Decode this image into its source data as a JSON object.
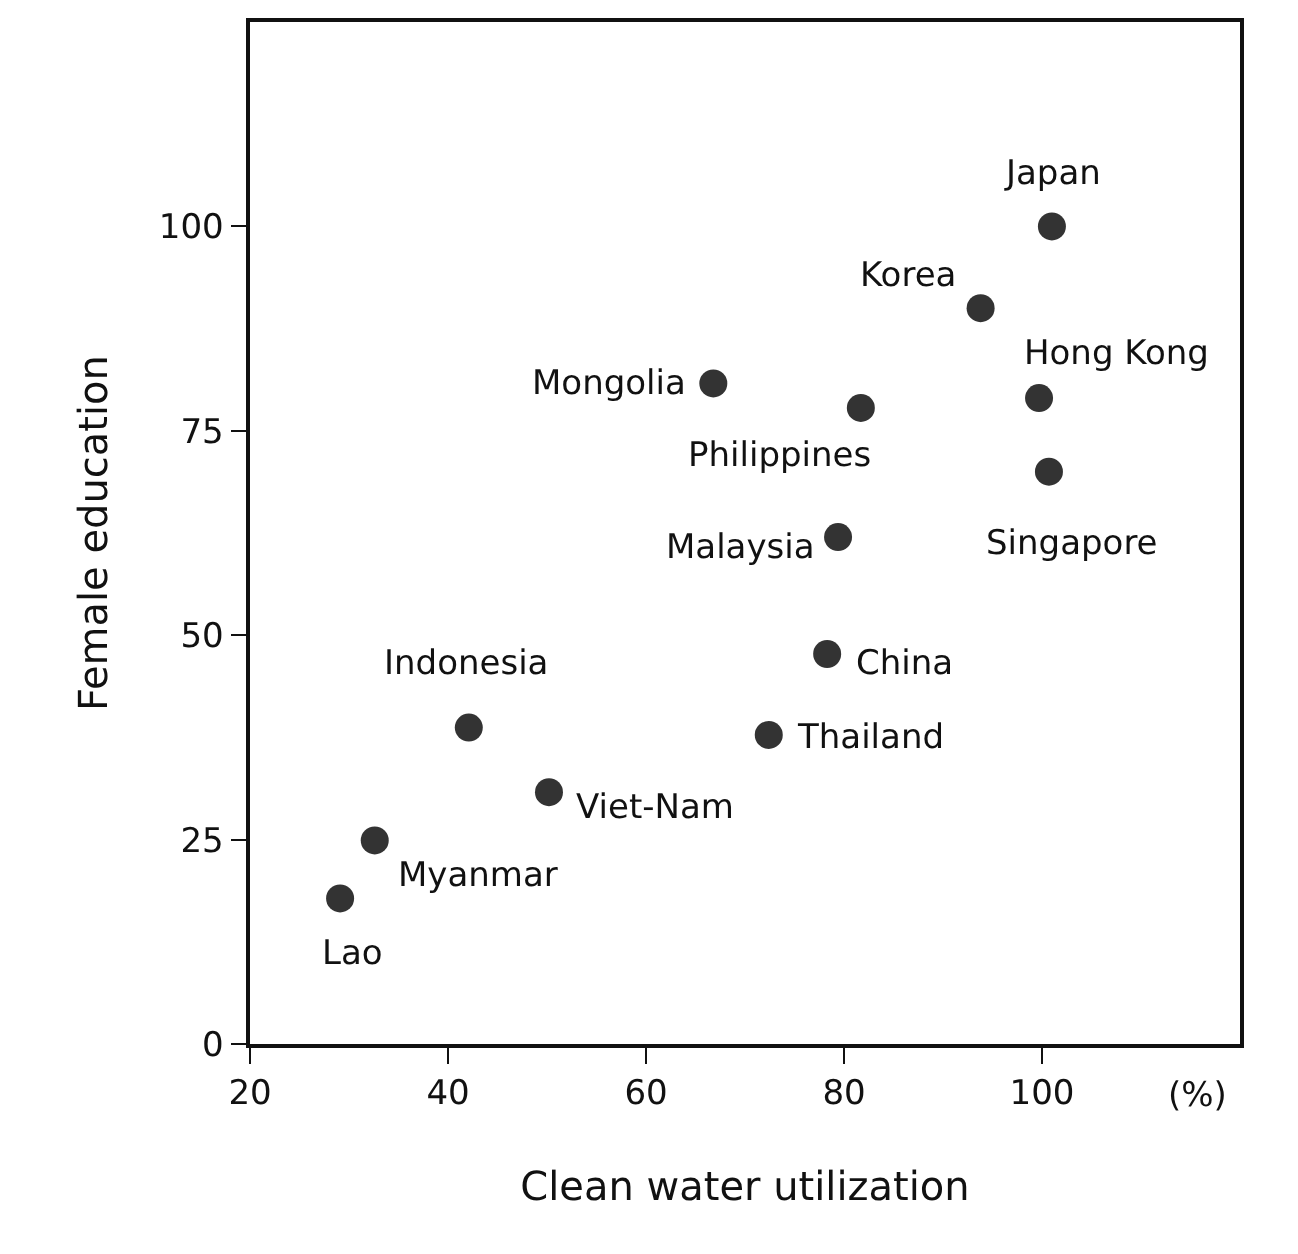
{
  "chart_data": {
    "type": "scatter",
    "xlabel": "Clean water utilization",
    "ylabel": "Female education",
    "x": [
      101,
      93.8,
      99.7,
      66.8,
      81.7,
      100.7,
      79.4,
      78.3,
      42.1,
      72.4,
      50.2,
      32.6,
      29.1
    ],
    "values": [
      100,
      90,
      79,
      80.8,
      77.8,
      70,
      62,
      47.7,
      38.7,
      37.8,
      30.8,
      24.9,
      17.8
    ],
    "color": "#333333",
    "marker": "circle",
    "xlim": [
      20,
      120
    ],
    "xticks": [
      20,
      40,
      60,
      80,
      100
    ],
    "ylim": [
      0,
      125
    ],
    "yticks": [
      0,
      25,
      50,
      75,
      100
    ],
    "grid": false,
    "annotations": [
      {
        "text": "Japan",
        "x": 101,
        "y": 100
      },
      {
        "text": "Korea",
        "x": 93.8,
        "y": 90
      },
      {
        "text": "Hong Kong",
        "x": 99.7,
        "y": 79
      },
      {
        "text": "Mongolia",
        "x": 66.8,
        "y": 80.8
      },
      {
        "text": "Philippines",
        "x": 81.7,
        "y": 77.8
      },
      {
        "text": "Singapore",
        "x": 100.7,
        "y": 70
      },
      {
        "text": "Malaysia",
        "x": 79.4,
        "y": 62
      },
      {
        "text": "China",
        "x": 78.3,
        "y": 47.7
      },
      {
        "text": "Indonesia",
        "x": 42.1,
        "y": 38.7
      },
      {
        "text": "Thailand",
        "x": 72.4,
        "y": 37.8
      },
      {
        "text": "Viet-Nam",
        "x": 50.2,
        "y": 30.8
      },
      {
        "text": "Myanmar",
        "x": 32.6,
        "y": 24.9
      },
      {
        "text": "Lao",
        "x": 29.1,
        "y": 17.8
      },
      "(%)"
    ]
  }
}
